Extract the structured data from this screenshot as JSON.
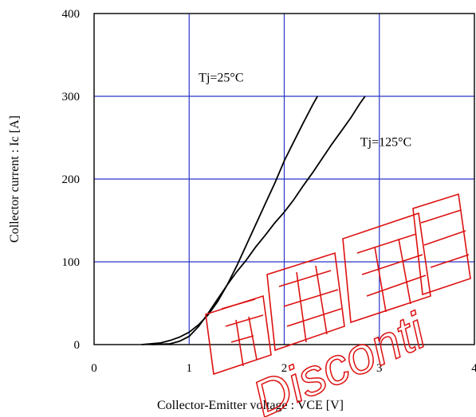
{
  "chart_data": {
    "type": "line",
    "title": "",
    "xlabel": "Collector-Emitter voltage : VCE [V]",
    "ylabel": "Collector current : Ic [A]",
    "xlim": [
      0,
      4
    ],
    "ylim": [
      0,
      400
    ],
    "xticks": [
      "0",
      "1",
      "2",
      "3",
      "4"
    ],
    "yticks": [
      "0",
      "100",
      "200",
      "300",
      "400"
    ],
    "grid": true,
    "grid_color": "#2a35c8",
    "series": [
      {
        "name": "Tj=25°C",
        "x": [
          0.5,
          0.7,
          0.8,
          0.9,
          1.0,
          1.1,
          1.2,
          1.3,
          1.4,
          1.5,
          1.6,
          1.7,
          1.8,
          1.9,
          2.0,
          2.1,
          2.2,
          2.3,
          2.35
        ],
        "y": [
          0,
          2,
          5,
          9,
          15,
          24,
          36,
          52,
          72,
          95,
          120,
          145,
          170,
          195,
          222,
          245,
          268,
          290,
          300
        ]
      },
      {
        "name": "Tj=125°C",
        "x": [
          0.6,
          0.8,
          0.9,
          1.0,
          1.1,
          1.2,
          1.3,
          1.4,
          1.5,
          1.6,
          1.7,
          1.8,
          1.9,
          2.0,
          2.1,
          2.2,
          2.3,
          2.4,
          2.5,
          2.6,
          2.7,
          2.8,
          2.85
        ],
        "y": [
          0,
          1,
          4,
          10,
          22,
          38,
          55,
          72,
          88,
          102,
          118,
          132,
          147,
          160,
          175,
          192,
          208,
          225,
          242,
          258,
          274,
          292,
          300
        ]
      }
    ],
    "annotations": [
      {
        "text": "Tj=25°C",
        "x": 1.1,
        "y": 318
      },
      {
        "text": "Tj=125°C",
        "x": 2.8,
        "y": 240
      }
    ],
    "watermark_text": "Disconti"
  }
}
